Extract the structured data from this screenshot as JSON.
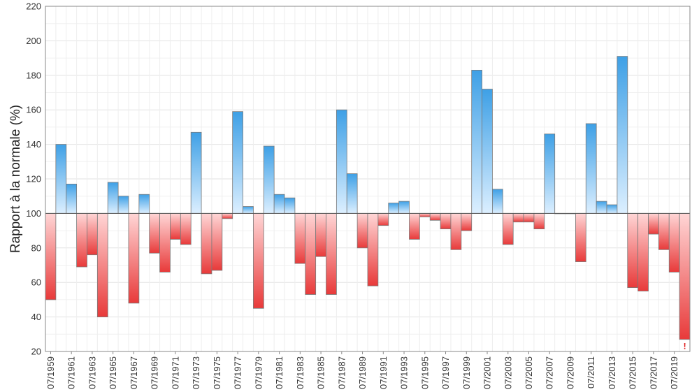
{
  "chart_data": {
    "type": "bar",
    "title": "",
    "xlabel": "",
    "ylabel": "Rapport à la normale (%)",
    "ylim": [
      20,
      220
    ],
    "yticks": [
      20,
      40,
      60,
      80,
      100,
      120,
      140,
      160,
      180,
      200,
      220
    ],
    "baseline": 100,
    "grid": true,
    "categories": [
      "07/1959",
      "07/1960",
      "07/1961",
      "07/1962",
      "07/1963",
      "07/1964",
      "07/1965",
      "07/1966",
      "07/1967",
      "07/1968",
      "07/1969",
      "07/1970",
      "07/1971",
      "07/1972",
      "07/1973",
      "07/1974",
      "07/1975",
      "07/1976",
      "07/1977",
      "07/1978",
      "07/1979",
      "07/1980",
      "07/1981",
      "07/1982",
      "07/1983",
      "07/1984",
      "07/1985",
      "07/1986",
      "07/1987",
      "07/1988",
      "07/1989",
      "07/1990",
      "07/1991",
      "07/1992",
      "07/1993",
      "07/1994",
      "07/1995",
      "07/1996",
      "07/1997",
      "07/1998",
      "07/1999",
      "07/2000",
      "07/2001",
      "07/2002",
      "07/2003",
      "07/2004",
      "07/2005",
      "07/2006",
      "07/2007",
      "07/2008",
      "07/2009",
      "07/2010",
      "07/2011",
      "07/2012",
      "07/2013",
      "07/2014",
      "07/2015",
      "07/2016",
      "07/2017",
      "07/2018",
      "07/2019",
      "07/2020"
    ],
    "tick_labels": [
      "07/1959",
      "07/1961",
      "07/1963",
      "07/1965",
      "07/1967",
      "07/1969",
      "07/1971",
      "07/1973",
      "07/1975",
      "07/1977",
      "07/1979",
      "07/1981",
      "07/1983",
      "07/1985",
      "07/1987",
      "07/1989",
      "07/1991",
      "07/1993",
      "07/1995",
      "07/1997",
      "07/1999",
      "07/2001",
      "07/2003",
      "07/2005",
      "07/2007",
      "07/2009",
      "07/2011",
      "07/2013",
      "07/2015",
      "07/2017",
      "07/2019"
    ],
    "values": [
      50,
      140,
      117,
      69,
      76,
      40,
      118,
      110,
      48,
      111,
      77,
      66,
      85,
      82,
      147,
      65,
      67,
      97,
      159,
      104,
      45,
      139,
      111,
      109,
      71,
      53,
      75,
      53,
      160,
      123,
      80,
      58,
      93,
      106,
      107,
      85,
      98,
      96,
      91,
      79,
      90,
      183,
      172,
      114,
      82,
      95,
      95,
      91,
      146,
      100,
      100,
      72,
      152,
      107,
      105,
      191,
      57,
      55,
      88,
      79,
      66,
      27
    ],
    "annotations": [
      {
        "category": "07/2020",
        "text": "!"
      }
    ],
    "colors": {
      "above_strong": "#3ea0e6",
      "above_light": "#dcefff",
      "below_strong": "#e83a3a",
      "below_light": "#ffd6d6",
      "bar_outline": "#7a7a7a",
      "annotation": "#e02020"
    }
  }
}
